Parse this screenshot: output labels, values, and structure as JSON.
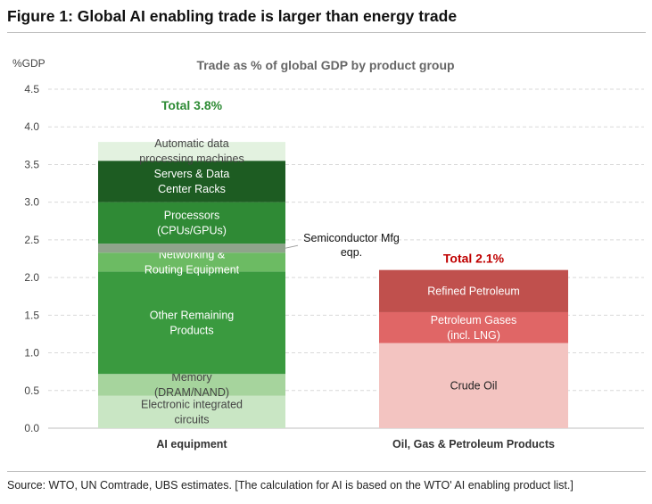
{
  "figure_title": "Figure 1: Global AI enabling trade is larger than energy trade",
  "source_note": "Source: WTO, UN Comtrade, UBS estimates. [The calculation for AI is based on the WTO' AI enabling product list.]",
  "chart_data": {
    "type": "bar",
    "stacked": true,
    "title": "Trade as % of global GDP by product group",
    "ylabel": "%GDP",
    "ylim": [
      0,
      4.5
    ],
    "yticks": [
      "0.0",
      "0.5",
      "1.0",
      "1.5",
      "2.0",
      "2.5",
      "3.0",
      "3.5",
      "4.0",
      "4.5"
    ],
    "grid": true,
    "categories": [
      "AI equipment",
      "Oil, Gas & Petroleum Products"
    ],
    "totals": [
      {
        "label": "Total 3.8%",
        "value": 3.8,
        "color": "#2e8b35"
      },
      {
        "label": "Total 2.1%",
        "value": 2.1,
        "color": "#c00000"
      }
    ],
    "stacks": [
      {
        "category": "AI equipment",
        "segments": [
          {
            "label": [
              "Electronic integrated",
              "circuits"
            ],
            "value": 0.43,
            "color": "#c9e6c4",
            "text_color": "#444444"
          },
          {
            "label": [
              "Memory",
              "(DRAM/NAND)"
            ],
            "value": 0.29,
            "color": "#a6d49d",
            "text_color": "#444444"
          },
          {
            "label": [
              "Other Remaining",
              "Products"
            ],
            "value": 1.36,
            "color": "#3a9a3f",
            "text_color": "#ffffff"
          },
          {
            "label": [
              "Networking &",
              "Routing Equipment"
            ],
            "value": 0.25,
            "color": "#6cbb63",
            "text_color": "#ffffff"
          },
          {
            "label": [
              "Semiconductor Mfg",
              "eqp."
            ],
            "value": 0.12,
            "color": "#8fa48b",
            "text_color": "#111111",
            "callout": true
          },
          {
            "label": [
              "Processors",
              "(CPUs/GPUs)"
            ],
            "value": 0.55,
            "color": "#2f8a35",
            "text_color": "#ffffff"
          },
          {
            "label": [
              "Servers & Data",
              "Center Racks"
            ],
            "value": 0.55,
            "color": "#1d5c22",
            "text_color": "#ffffff"
          },
          {
            "label": [
              "Automatic data",
              "processing machines"
            ],
            "value": 0.25,
            "color": "#e3f2e0",
            "text_color": "#444444"
          }
        ]
      },
      {
        "category": "Oil, Gas & Petroleum Products",
        "segments": [
          {
            "label": [
              "Crude Oil"
            ],
            "value": 1.13,
            "color": "#f3c4c1",
            "text_color": "#222222"
          },
          {
            "label": [
              "Petroleum Gases",
              "(incl. LNG)"
            ],
            "value": 0.41,
            "color": "#e06666",
            "text_color": "#ffffff"
          },
          {
            "label": [
              "Refined Petroleum"
            ],
            "value": 0.56,
            "color": "#c0504d",
            "text_color": "#ffffff"
          }
        ]
      }
    ]
  }
}
